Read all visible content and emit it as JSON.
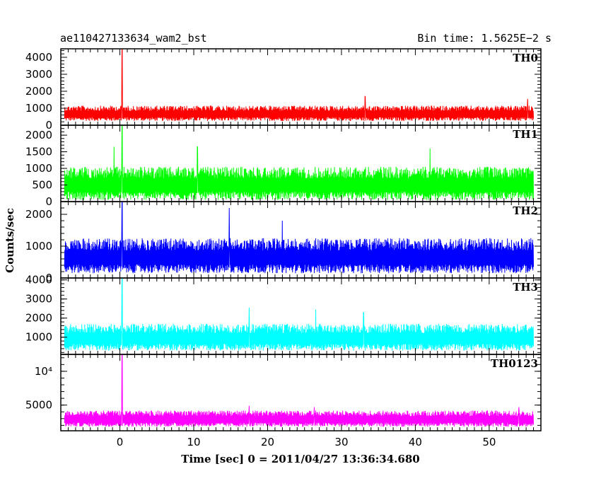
{
  "chart_data": {
    "type": "line",
    "title": "ae110427133634_wam2_bst",
    "subtitle": "Bin time: 1.5625E−2 s",
    "xlabel": "Time [sec] 0 = 2011/04/27 13:36:34.680",
    "ylabel": "Counts/sec",
    "xlim": [
      -8,
      57
    ],
    "x_ticks": [
      0,
      10,
      20,
      30,
      40,
      50
    ],
    "x_tick_labels": [
      "0",
      "10",
      "20",
      "30",
      "40",
      "50"
    ],
    "x_range": [
      -7.5,
      56
    ],
    "grid": false,
    "panels": [
      {
        "name": "TH0",
        "color": "#ff0000",
        "ylim": [
          0,
          4500
        ],
        "y_ticks": [
          0,
          1000,
          2000,
          3000,
          4000
        ],
        "y_tick_labels": [
          "0",
          "1000",
          "2000",
          "3000",
          "4000"
        ],
        "baseline_band": [
          250,
          1150
        ],
        "spike_max": 4500,
        "peaks": [
          [
            0.3,
            4500
          ],
          [
            33.2,
            1700
          ],
          [
            55.2,
            1550
          ]
        ]
      },
      {
        "name": "TH1",
        "color": "#00ff00",
        "ylim": [
          0,
          2300
        ],
        "y_ticks": [
          0,
          500,
          1000,
          1500,
          2000
        ],
        "y_tick_labels": [
          "0",
          "500",
          "1000",
          "1500",
          "2000"
        ],
        "baseline_band": [
          50,
          1050
        ],
        "spike_max": 2300,
        "peaks": [
          [
            -0.8,
            1650
          ],
          [
            0.3,
            2300
          ],
          [
            10.5,
            1650
          ],
          [
            42.0,
            1600
          ]
        ]
      },
      {
        "name": "TH2",
        "color": "#0000ff",
        "ylim": [
          0,
          2400
        ],
        "y_ticks": [
          0,
          1000,
          2000
        ],
        "y_tick_labels": [
          "0",
          "1000",
          "2000"
        ],
        "baseline_band": [
          150,
          1250
        ],
        "spike_max": 2400,
        "peaks": [
          [
            0.3,
            2400
          ],
          [
            14.8,
            2200
          ],
          [
            22.0,
            1800
          ]
        ]
      },
      {
        "name": "TH3",
        "color": "#00ffff",
        "ylim": [
          100,
          4100
        ],
        "y_ticks": [
          1000,
          2000,
          3000,
          4000
        ],
        "y_tick_labels": [
          "1000",
          "2000",
          "3000",
          "4000"
        ],
        "baseline_band": [
          300,
          1700
        ],
        "spike_max": 4100,
        "peaks": [
          [
            0.3,
            4100
          ],
          [
            17.5,
            2550
          ],
          [
            26.5,
            2450
          ],
          [
            33.0,
            2300
          ]
        ]
      },
      {
        "name": "TH0123",
        "color": "#ff00ff",
        "ylim": [
          1200,
          12500
        ],
        "y_ticks": [
          5000,
          10000
        ],
        "y_tick_labels": [
          "5000",
          "10⁴"
        ],
        "baseline_band": [
          1800,
          4200
        ],
        "spike_max": 12500,
        "peaks": [
          [
            0.3,
            12500
          ],
          [
            17.5,
            4900
          ],
          [
            26.3,
            4700
          ],
          [
            54.0,
            4700
          ]
        ]
      }
    ]
  }
}
